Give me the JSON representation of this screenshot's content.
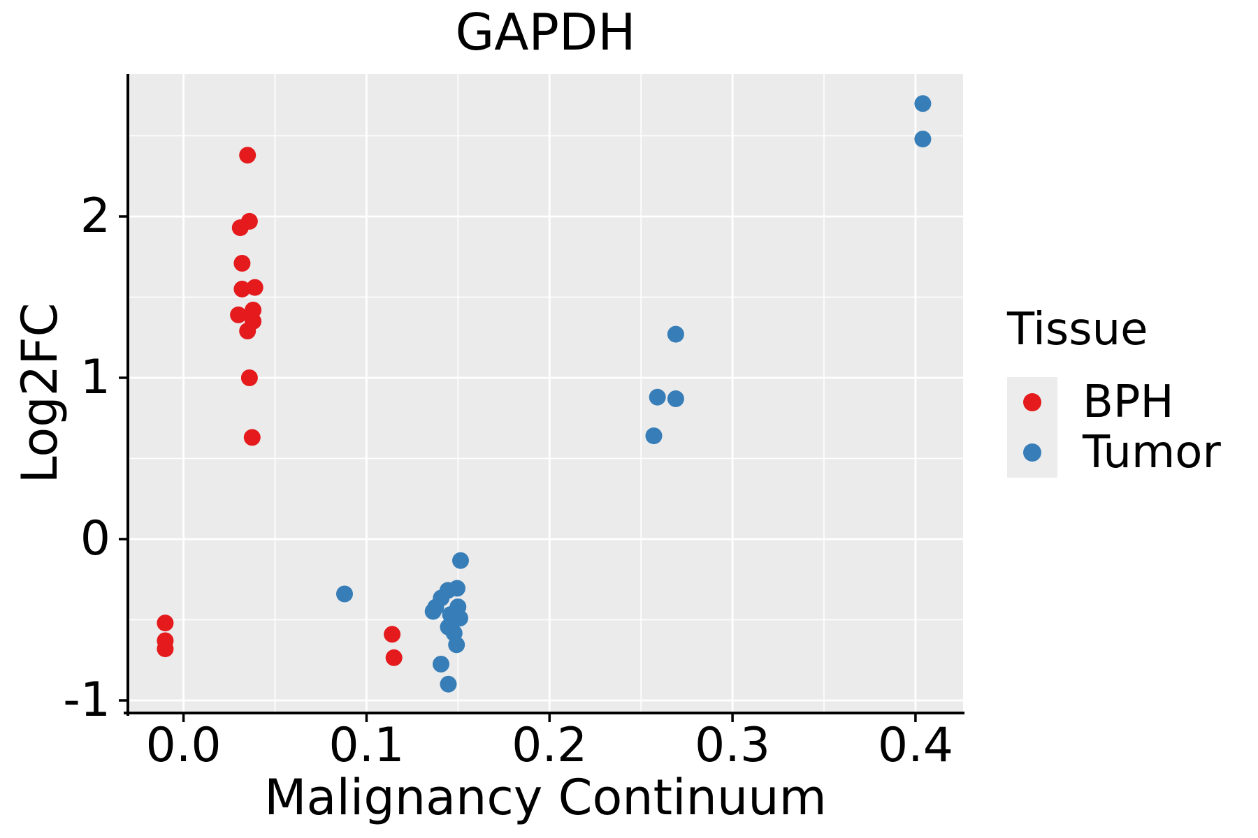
{
  "chart_data": {
    "type": "scatter",
    "title": "GAPDH",
    "xlabel": "Malignancy Continuum",
    "ylabel": "Log2FC",
    "xlim": [
      -0.0304,
      0.426
    ],
    "ylim": [
      -1.078,
      2.883
    ],
    "xticks": [
      0.0,
      0.1,
      0.2,
      0.3,
      0.4
    ],
    "xtick_labels": [
      "0.0",
      "0.1",
      "0.2",
      "0.3",
      "0.4"
    ],
    "yticks": [
      -1,
      0,
      1,
      2
    ],
    "ytick_labels": [
      "-1",
      "0",
      "1",
      "2"
    ],
    "x_minor_gridlines": [
      0.05,
      0.15,
      0.25,
      0.35
    ],
    "y_minor_gridlines": [
      -0.5,
      0.5,
      1.5,
      2.5
    ],
    "grid": true,
    "background_color": "#EBEBEB",
    "gridline_color": "#FFFFFF",
    "legend_key_color": "#ECECEC",
    "text_color": "#000000",
    "legend": {
      "title": "Tissue",
      "position": "right"
    },
    "series": [
      {
        "name": "BPH",
        "color": "#E41A1C",
        "points": [
          [
            0.035,
            2.38
          ],
          [
            0.031,
            1.93
          ],
          [
            0.036,
            1.97
          ],
          [
            0.032,
            1.71
          ],
          [
            0.032,
            1.55
          ],
          [
            0.039,
            1.56
          ],
          [
            0.038,
            1.42
          ],
          [
            0.03,
            1.39
          ],
          [
            0.038,
            1.35
          ],
          [
            0.035,
            1.29
          ],
          [
            0.036,
            1.0
          ],
          [
            0.0375,
            0.63
          ],
          [
            -0.01,
            -0.52
          ],
          [
            -0.01,
            -0.63
          ],
          [
            -0.01,
            -0.68
          ],
          [
            0.114,
            -0.59
          ],
          [
            0.115,
            -0.735
          ]
        ]
      },
      {
        "name": "Tumor",
        "color": "#377EB8",
        "points": [
          [
            0.088,
            -0.34
          ],
          [
            0.1514,
            -0.133
          ],
          [
            0.1495,
            -0.305
          ],
          [
            0.1445,
            -0.318
          ],
          [
            0.1408,
            -0.365
          ],
          [
            0.15,
            -0.42
          ],
          [
            0.1378,
            -0.422
          ],
          [
            0.1364,
            -0.448
          ],
          [
            0.1459,
            -0.468
          ],
          [
            0.151,
            -0.49
          ],
          [
            0.1447,
            -0.545
          ],
          [
            0.1479,
            -0.583
          ],
          [
            0.1492,
            -0.655
          ],
          [
            0.1407,
            -0.775
          ],
          [
            0.1447,
            -0.899
          ],
          [
            0.257,
            0.64
          ],
          [
            0.259,
            0.88
          ],
          [
            0.269,
            0.87
          ],
          [
            0.269,
            1.27
          ],
          [
            0.404,
            2.48
          ],
          [
            0.404,
            2.7
          ]
        ]
      }
    ]
  }
}
